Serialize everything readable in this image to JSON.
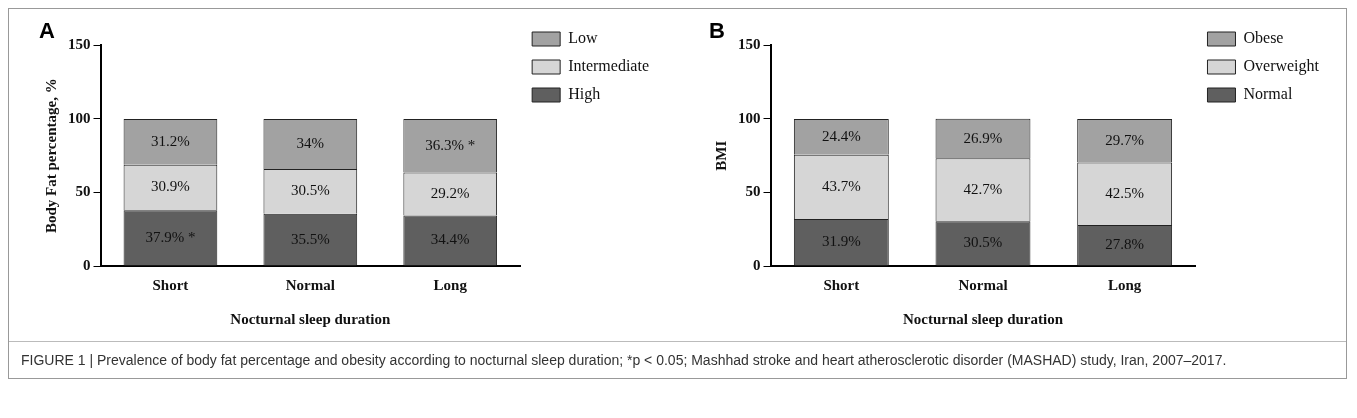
{
  "chart_data": [
    {
      "type": "bar",
      "title": "A",
      "xlabel": "Nocturnal sleep duration",
      "ylabel": "Body Fat percentage, %",
      "categories": [
        "Short",
        "Normal",
        "Long"
      ],
      "stacked": true,
      "ylim": [
        0,
        150
      ],
      "yticks": [
        0,
        50,
        100,
        150
      ],
      "grid": false,
      "legend": "top right",
      "series": [
        {
          "name": "High",
          "color": "#5f5f5f",
          "values": [
            37.9,
            35.5,
            34.4
          ],
          "value_labels": [
            "37.9% *",
            "35.5%",
            "34.4%"
          ]
        },
        {
          "name": "Intermediate",
          "color": "#d6d6d6",
          "values": [
            30.9,
            30.5,
            29.2
          ],
          "value_labels": [
            "30.9%",
            "30.5%",
            "29.2%"
          ]
        },
        {
          "name": "Low",
          "color": "#a2a2a2",
          "values": [
            31.2,
            34,
            36.3
          ],
          "value_labels": [
            "31.2%",
            "34%",
            "36.3% *"
          ]
        }
      ],
      "annotations": [
        "FIGURE 1 | Prevalence of body fat percentage and obesity according to nocturnal sleep duration; *p < 0.05; Mashhad stroke and heart atherosclerotic disorder (MASHAD) study, Iran, 2007–2017."
      ]
    },
    {
      "type": "bar",
      "title": "B",
      "xlabel": "Nocturnal sleep duration",
      "ylabel": "BMI",
      "categories": [
        "Short",
        "Normal",
        "Long"
      ],
      "stacked": true,
      "ylim": [
        0,
        150
      ],
      "yticks": [
        0,
        50,
        100,
        150
      ],
      "grid": false,
      "legend": "top right",
      "series": [
        {
          "name": "Normal",
          "color": "#5f5f5f",
          "values": [
            31.9,
            30.5,
            27.8
          ],
          "value_labels": [
            "31.9%",
            "30.5%",
            "27.8%"
          ]
        },
        {
          "name": "Overweight",
          "color": "#d6d6d6",
          "values": [
            43.7,
            42.7,
            42.5
          ],
          "value_labels": [
            "43.7%",
            "42.7%",
            "42.5%"
          ]
        },
        {
          "name": "Obese",
          "color": "#a2a2a2",
          "values": [
            24.4,
            26.9,
            29.7
          ],
          "value_labels": [
            "24.4%",
            "26.9%",
            "29.7%"
          ]
        }
      ]
    }
  ]
}
